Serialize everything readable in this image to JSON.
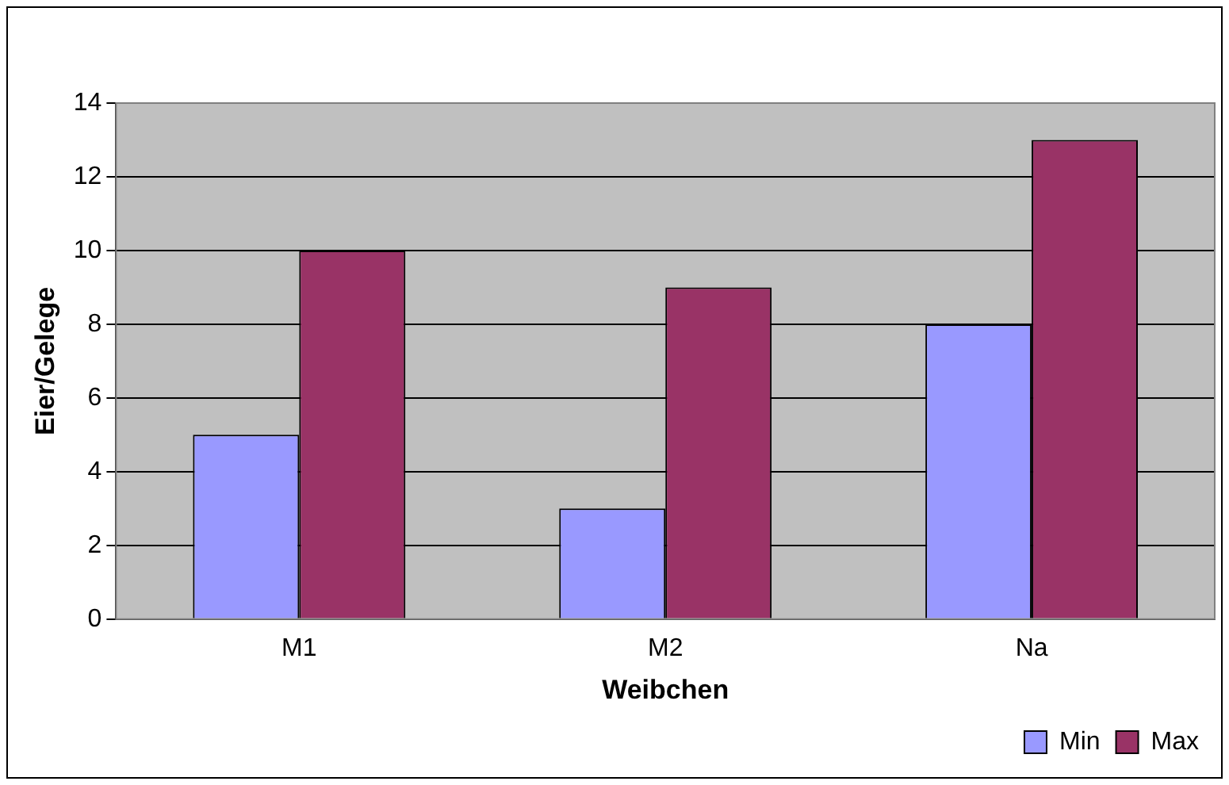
{
  "chart_data": {
    "type": "bar",
    "xlabel": "Weibchen",
    "ylabel": "Eier/Gelege",
    "categories": [
      "M1",
      "M2",
      "Na"
    ],
    "series": [
      {
        "name": "Min",
        "color": "#9999ff",
        "values": [
          5,
          3,
          8
        ]
      },
      {
        "name": "Max",
        "color": "#993366",
        "values": [
          10,
          9,
          13
        ]
      }
    ],
    "ylim": [
      0,
      14
    ],
    "yticks": [
      0,
      2,
      4,
      6,
      8,
      10,
      12,
      14
    ],
    "grid": "y",
    "legend": "bottom right"
  }
}
